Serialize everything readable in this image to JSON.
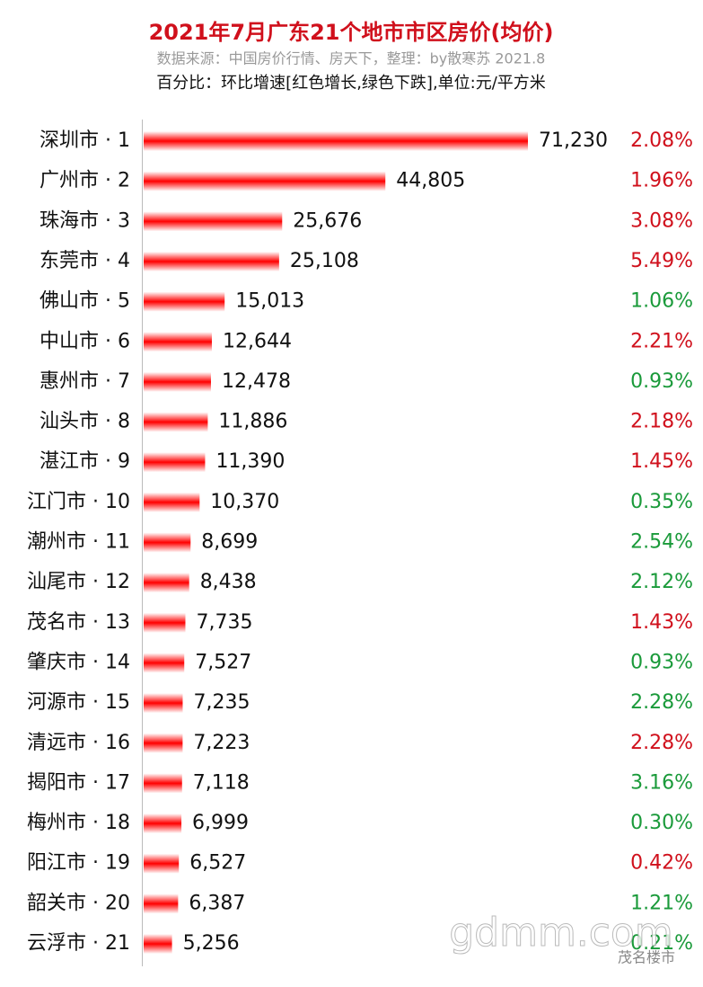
{
  "chart_data": {
    "type": "bar",
    "orientation": "horizontal",
    "title": "2021年7月广东21个地市市区房价(均价)",
    "subtitle": "数据来源：中国房价行情、房天下，整理：by散寒苏 2021.8",
    "note": "百分比：环比增速[红色增长,绿色下跌],单位:元/平方米",
    "categories": [
      "深圳市 · 1",
      "广州市 · 2",
      "珠海市 · 3",
      "东莞市 · 4",
      "佛山市 · 5",
      "中山市 · 6",
      "惠州市 · 7",
      "汕头市 · 8",
      "湛江市 · 9",
      "江门市 · 10",
      "潮州市 · 11",
      "汕尾市 · 12",
      "茂名市 · 13",
      "肇庆市 · 14",
      "河源市 · 15",
      "清远市 · 16",
      "揭阳市 · 17",
      "梅州市 · 18",
      "阳江市 · 19",
      "韶关市 · 20",
      "云浮市 · 21"
    ],
    "values": [
      71230,
      44805,
      25676,
      25108,
      15013,
      12644,
      12478,
      11886,
      11390,
      10370,
      8699,
      8438,
      7735,
      7527,
      7235,
      7223,
      7118,
      6999,
      6527,
      6387,
      5256
    ],
    "value_labels": [
      "71,230",
      "44,805",
      "25,676",
      "25,108",
      "15,013",
      "12,644",
      "12,478",
      "11,886",
      "11,390",
      "10,370",
      "8,699",
      "8,438",
      "7,735",
      "7,527",
      "7,235",
      "7,223",
      "7,118",
      "6,999",
      "6,527",
      "6,387",
      "5,256"
    ],
    "color": "#ff0000",
    "change_labels": [
      "2.08%",
      "1.96%",
      "3.08%",
      "5.49%",
      "1.06%",
      "2.21%",
      "0.93%",
      "2.18%",
      "1.45%",
      "0.35%",
      "2.54%",
      "2.12%",
      "1.43%",
      "0.93%",
      "2.28%",
      "2.28%",
      "3.16%",
      "0.30%",
      "0.42%",
      "1.21%",
      "0.21%"
    ],
    "change_colors": [
      "#d0101c",
      "#d0101c",
      "#d0101c",
      "#d0101c",
      "#1a9a3a",
      "#d0101c",
      "#1a9a3a",
      "#d0101c",
      "#d0101c",
      "#1a9a3a",
      "#1a9a3a",
      "#1a9a3a",
      "#d0101c",
      "#1a9a3a",
      "#1a9a3a",
      "#d0101c",
      "#1a9a3a",
      "#1a9a3a",
      "#d0101c",
      "#1a9a3a",
      "#1a9a3a"
    ],
    "watermark": "gdmm.com",
    "source_tag": "茂名楼市"
  }
}
